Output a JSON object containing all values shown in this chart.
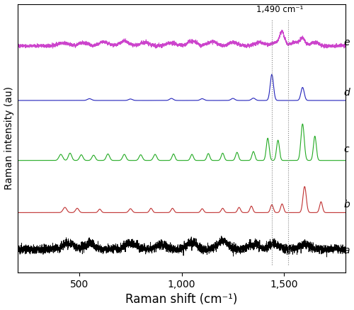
{
  "xlabel": "Raman shift (cm⁻¹)",
  "ylabel": "Raman intensity (au)",
  "xmin": 200,
  "xmax": 1800,
  "annotation_text": "1,490 cm⁻¹",
  "dashed_line1": 1440,
  "dashed_line2": 1520,
  "colors": {
    "a": "#000000",
    "b": "#c03030",
    "c": "#22aa22",
    "d": "#2222bb",
    "e": "#cc44cc"
  },
  "labels": [
    "a",
    "b",
    "c",
    "d",
    "e"
  ],
  "offsets": [
    0.05,
    0.22,
    0.42,
    0.65,
    0.85
  ],
  "scale_a": 0.08,
  "scale_b": 0.1,
  "scale_c": 0.14,
  "scale_d": 0.1,
  "scale_e": 0.07
}
